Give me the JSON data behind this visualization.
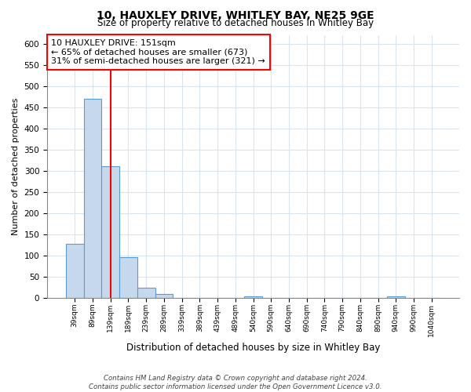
{
  "title": "10, HAUXLEY DRIVE, WHITLEY BAY, NE25 9GE",
  "subtitle": "Size of property relative to detached houses in Whitley Bay",
  "xlabel": "Distribution of detached houses by size in Whitley Bay",
  "ylabel": "Number of detached properties",
  "footnote1": "Contains HM Land Registry data © Crown copyright and database right 2024.",
  "footnote2": "Contains public sector information licensed under the Open Government Licence v3.0.",
  "bin_labels": [
    "39sqm",
    "89sqm",
    "139sqm",
    "189sqm",
    "239sqm",
    "289sqm",
    "339sqm",
    "389sqm",
    "439sqm",
    "489sqm",
    "540sqm",
    "590sqm",
    "640sqm",
    "690sqm",
    "740sqm",
    "790sqm",
    "840sqm",
    "890sqm",
    "940sqm",
    "990sqm",
    "1040sqm"
  ],
  "bar_heights": [
    128,
    470,
    312,
    96,
    25,
    10,
    0,
    0,
    0,
    0,
    5,
    0,
    0,
    0,
    0,
    0,
    0,
    0,
    5,
    0,
    0
  ],
  "bar_color": "#c6d9ec",
  "bar_edge_color": "#5b9bd5",
  "ylim": [
    0,
    620
  ],
  "yticks": [
    0,
    50,
    100,
    150,
    200,
    250,
    300,
    350,
    400,
    450,
    500,
    550,
    600
  ],
  "red_line_x": 2.0,
  "annotation_text": "10 HAUXLEY DRIVE: 151sqm\n← 65% of detached houses are smaller (673)\n31% of semi-detached houses are larger (321) →",
  "annotation_box_color": "white",
  "annotation_box_edge": "red",
  "grid_color": "#d8e4f0",
  "background_color": "white"
}
